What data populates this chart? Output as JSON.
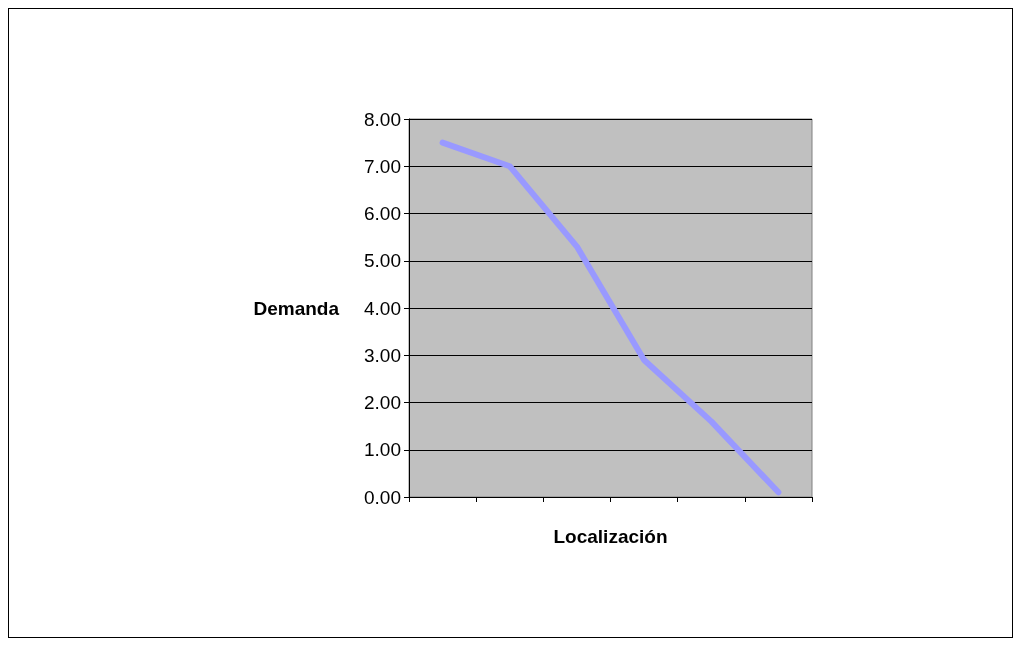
{
  "chart_data": {
    "type": "line",
    "xlabel": "Localización",
    "ylabel": "Demanda",
    "categories": [
      null,
      null,
      null,
      null,
      null,
      null
    ],
    "series": [
      {
        "color": "#9999ff",
        "values": [
          7.5,
          7.0,
          5.3,
          2.9,
          1.6,
          0.1
        ]
      }
    ],
    "ylim": [
      0,
      8
    ],
    "yticks": [
      {
        "value": 0,
        "label": "0.00"
      },
      {
        "value": 1,
        "label": "1.00"
      },
      {
        "value": 2,
        "label": "2.00"
      },
      {
        "value": 3,
        "label": "3.00"
      },
      {
        "value": 4,
        "label": "4.00"
      },
      {
        "value": 5,
        "label": "5.00"
      },
      {
        "value": 6,
        "label": "6.00"
      },
      {
        "value": 7,
        "label": "7.00"
      },
      {
        "value": 8,
        "label": "8.00"
      }
    ],
    "grid": true,
    "marker": "none",
    "line_style": "solid"
  }
}
